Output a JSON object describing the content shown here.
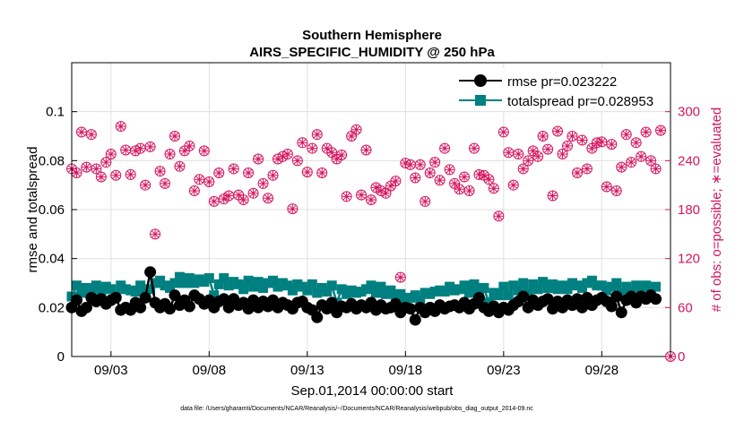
{
  "chart_data": {
    "type": "line",
    "title": "Southern Hemisphere",
    "subtitle": "AIRS_SPECIFIC_HUMIDITY @ 250 hPa",
    "xlabel": "Sep.01,2014 00:00:00 start",
    "ylabel": "rmse and totalspread",
    "ylabel_right": "# of obs: o=possible; ∗=evaluated",
    "footnote": "data file: /Users/gharamti/Documents/NCAR/Reanalysis/~/Documents/NCAR/Reanalysis/webpub/obs_diag_output_2014-09.nc",
    "xlim": [
      1,
      31.5
    ],
    "ylim": [
      0,
      0.12
    ],
    "ylim_right": [
      0,
      360
    ],
    "x_ticks": [
      3,
      8,
      13,
      18,
      23,
      28
    ],
    "x_tick_labels": [
      "09/03",
      "09/08",
      "09/13",
      "09/18",
      "09/23",
      "09/28"
    ],
    "y_ticks": [
      0,
      0.02,
      0.04,
      0.06,
      0.08,
      0.1
    ],
    "y_tick_labels": [
      "0",
      "0.02",
      "0.04",
      "0.06",
      "0.08",
      "0.1"
    ],
    "y_ticks_right": [
      0,
      60,
      120,
      180,
      240,
      300
    ],
    "y_tick_labels_right": [
      "0",
      "60",
      "120",
      "180",
      "240",
      "300"
    ],
    "grid": true,
    "legend_position": "top-right",
    "legend": [
      "rmse pr=0.023222",
      "totalspread pr=0.028953"
    ],
    "colors": {
      "rmse": "#000000",
      "totalspread": "#008080",
      "obs": "#d6155f",
      "grid": "#e0e0e0"
    },
    "series": [
      {
        "name": "rmse pr=0.023222",
        "x": [
          1.0,
          1.25,
          1.5,
          1.75,
          2.0,
          2.25,
          2.5,
          2.75,
          3.0,
          3.25,
          3.5,
          3.75,
          4.0,
          4.25,
          4.5,
          4.75,
          5.0,
          5.25,
          5.5,
          5.75,
          6.0,
          6.25,
          6.5,
          6.75,
          7.0,
          7.25,
          7.5,
          7.75,
          8.0,
          8.25,
          8.5,
          8.75,
          9.0,
          9.25,
          9.5,
          9.75,
          10.0,
          10.25,
          10.5,
          10.75,
          11.0,
          11.25,
          11.5,
          11.75,
          12.0,
          12.25,
          12.5,
          12.75,
          13.0,
          13.25,
          13.5,
          13.75,
          14.0,
          14.25,
          14.5,
          14.75,
          15.0,
          15.25,
          15.5,
          15.75,
          16.0,
          16.25,
          16.5,
          16.75,
          17.0,
          17.25,
          17.5,
          17.75,
          18.0,
          18.25,
          18.5,
          18.75,
          19.0,
          19.25,
          19.5,
          19.75,
          20.0,
          20.25,
          20.5,
          20.75,
          21.0,
          21.25,
          21.5,
          21.75,
          22.0,
          22.25,
          22.5,
          22.75,
          23.0,
          23.25,
          23.5,
          23.75,
          24.0,
          24.25,
          24.5,
          24.75,
          25.0,
          25.25,
          25.5,
          25.75,
          26.0,
          26.25,
          26.5,
          26.75,
          27.0,
          27.25,
          27.5,
          27.75,
          28.0,
          28.25,
          28.5,
          28.75,
          29.0,
          29.25,
          29.5,
          29.75,
          30.0,
          30.25,
          30.5,
          30.75
        ],
        "values": [
          0.02,
          0.023,
          0.0185,
          0.02,
          0.024,
          0.0225,
          0.0235,
          0.0215,
          0.023,
          0.024,
          0.019,
          0.02,
          0.019,
          0.022,
          0.02,
          0.024,
          0.0345,
          0.022,
          0.02,
          0.0215,
          0.0195,
          0.025,
          0.021,
          0.023,
          0.0205,
          0.025,
          0.0235,
          0.0215,
          0.023,
          0.02,
          0.0225,
          0.0235,
          0.02,
          0.0235,
          0.021,
          0.022,
          0.0195,
          0.023,
          0.02,
          0.0225,
          0.0205,
          0.023,
          0.02,
          0.022,
          0.021,
          0.0195,
          0.022,
          0.0225,
          0.02,
          0.019,
          0.016,
          0.021,
          0.0195,
          0.022,
          0.018,
          0.0205,
          0.02,
          0.0215,
          0.0195,
          0.021,
          0.02,
          0.022,
          0.019,
          0.021,
          0.0195,
          0.02,
          0.0215,
          0.018,
          0.02,
          0.0195,
          0.015,
          0.02,
          0.018,
          0.02,
          0.0185,
          0.021,
          0.0195,
          0.0205,
          0.021,
          0.02,
          0.022,
          0.0195,
          0.0215,
          0.024,
          0.02,
          0.0185,
          0.0205,
          0.018,
          0.02,
          0.019,
          0.021,
          0.0225,
          0.0245,
          0.02,
          0.023,
          0.021,
          0.0225,
          0.0235,
          0.0195,
          0.0225,
          0.02,
          0.023,
          0.021,
          0.0235,
          0.02,
          0.024,
          0.021,
          0.023,
          0.024,
          0.0225,
          0.0205,
          0.0245,
          0.018,
          0.023,
          0.0245,
          0.022,
          0.0245,
          0.0235,
          0.025,
          0.0235
        ]
      },
      {
        "name": "totalspread pr=0.028953",
        "x": [
          1.0,
          1.25,
          1.5,
          1.75,
          2.0,
          2.25,
          2.5,
          2.75,
          3.0,
          3.25,
          3.5,
          3.75,
          4.0,
          4.25,
          4.5,
          4.75,
          5.0,
          5.25,
          5.5,
          5.75,
          6.0,
          6.25,
          6.5,
          6.75,
          7.0,
          7.25,
          7.5,
          7.75,
          8.0,
          8.25,
          8.5,
          8.75,
          9.0,
          9.25,
          9.5,
          9.75,
          10.0,
          10.25,
          10.5,
          10.75,
          11.0,
          11.25,
          11.5,
          11.75,
          12.0,
          12.25,
          12.5,
          12.75,
          13.0,
          13.25,
          13.5,
          13.75,
          14.0,
          14.25,
          14.5,
          14.75,
          15.0,
          15.25,
          15.5,
          15.75,
          16.0,
          16.25,
          16.5,
          16.75,
          17.0,
          17.25,
          17.5,
          17.75,
          18.0,
          18.25,
          18.5,
          18.75,
          19.0,
          19.25,
          19.5,
          19.75,
          20.0,
          20.25,
          20.5,
          20.75,
          21.0,
          21.25,
          21.5,
          21.75,
          22.0,
          22.25,
          22.5,
          22.75,
          23.0,
          23.25,
          23.5,
          23.75,
          24.0,
          24.25,
          24.5,
          24.75,
          25.0,
          25.25,
          25.5,
          25.75,
          26.0,
          26.25,
          26.5,
          26.75,
          27.0,
          27.25,
          27.5,
          27.75,
          28.0,
          28.25,
          28.5,
          28.75,
          29.0,
          29.25,
          29.5,
          29.75,
          30.0,
          30.25,
          30.5,
          30.75
        ],
        "values": [
          0.0245,
          0.029,
          0.026,
          0.028,
          0.027,
          0.029,
          0.0265,
          0.0285,
          0.0275,
          0.025,
          0.029,
          0.0275,
          0.027,
          0.0265,
          0.029,
          0.0255,
          0.0275,
          0.03,
          0.031,
          0.029,
          0.028,
          0.03,
          0.0325,
          0.03,
          0.032,
          0.03,
          0.0315,
          0.0305,
          0.032,
          0.025,
          0.0295,
          0.032,
          0.029,
          0.0305,
          0.0295,
          0.0275,
          0.031,
          0.0285,
          0.0305,
          0.028,
          0.03,
          0.031,
          0.0285,
          0.03,
          0.029,
          0.027,
          0.0295,
          0.0285,
          0.027,
          0.0295,
          0.026,
          0.028,
          0.0265,
          0.029,
          0.022,
          0.0275,
          0.0255,
          0.027,
          0.026,
          0.0265,
          0.0275,
          0.029,
          0.026,
          0.0285,
          0.0255,
          0.027,
          0.025,
          0.0255,
          0.0235,
          0.024,
          0.025,
          0.023,
          0.026,
          0.0255,
          0.0265,
          0.027,
          0.0265,
          0.0285,
          0.027,
          0.0275,
          0.029,
          0.026,
          0.0295,
          0.0275,
          0.028,
          0.022,
          0.026,
          0.025,
          0.0285,
          0.025,
          0.029,
          0.027,
          0.03,
          0.026,
          0.0295,
          0.0275,
          0.0305,
          0.028,
          0.0295,
          0.0275,
          0.029,
          0.0275,
          0.03,
          0.029,
          0.028,
          0.03,
          0.031,
          0.029,
          0.029,
          0.027,
          0.0285,
          0.03,
          0.026,
          0.0285,
          0.0265,
          0.029,
          0.028,
          0.029,
          0.0275,
          0.0285
        ]
      }
    ],
    "obs_series": {
      "x": [
        1.0,
        1.25,
        1.5,
        1.75,
        2.0,
        2.25,
        2.5,
        2.75,
        3.0,
        3.25,
        3.5,
        3.75,
        4.0,
        4.25,
        4.5,
        4.75,
        5.0,
        5.25,
        5.5,
        5.75,
        6.0,
        6.25,
        6.5,
        6.75,
        7.0,
        7.25,
        7.5,
        7.75,
        8.0,
        8.25,
        8.5,
        8.75,
        9.0,
        9.25,
        9.5,
        9.75,
        10.0,
        10.25,
        10.5,
        10.75,
        11.0,
        11.25,
        11.5,
        11.75,
        12.0,
        12.25,
        12.5,
        12.75,
        13.0,
        13.25,
        13.5,
        13.75,
        14.0,
        14.25,
        14.5,
        14.75,
        15.0,
        15.25,
        15.5,
        15.75,
        16.0,
        16.25,
        16.5,
        16.75,
        17.0,
        17.25,
        17.5,
        17.75,
        18.0,
        18.25,
        18.5,
        18.75,
        19.0,
        19.25,
        19.5,
        19.75,
        20.0,
        20.25,
        20.5,
        20.75,
        21.0,
        21.25,
        21.5,
        21.75,
        22.0,
        22.25,
        22.5,
        22.75,
        23.0,
        23.25,
        23.5,
        23.75,
        24.0,
        24.25,
        24.5,
        24.75,
        25.0,
        25.25,
        25.5,
        25.75,
        26.0,
        26.25,
        26.5,
        26.75,
        27.0,
        27.25,
        27.5,
        27.75,
        28.0,
        28.25,
        28.5,
        28.75,
        29.0,
        29.25,
        29.5,
        29.75,
        30.0,
        30.25,
        30.5,
        30.75,
        31.0,
        31.5
      ],
      "values": [
        230,
        225,
        275,
        232,
        272,
        230,
        220,
        238,
        248,
        222,
        282,
        253,
        223,
        252,
        255,
        210,
        257,
        150,
        227,
        212,
        248,
        270,
        233,
        252,
        258,
        203,
        217,
        252,
        214,
        190,
        225,
        193,
        197,
        230,
        198,
        192,
        225,
        200,
        242,
        212,
        194,
        222,
        242,
        245,
        248,
        181,
        240,
        262,
        226,
        255,
        272,
        225,
        255,
        250,
        242,
        247,
        196,
        270,
        278,
        198,
        253,
        192,
        207,
        203,
        200,
        209,
        215,
        97,
        237,
        235,
        219,
        235,
        190,
        225,
        238,
        216,
        255,
        229,
        212,
        205,
        220,
        203,
        255,
        223,
        222,
        217,
        206,
        172,
        275,
        250,
        210,
        248,
        230,
        240,
        252,
        245,
        270,
        254,
        197,
        276,
        248,
        258,
        270,
        225,
        265,
        230,
        255,
        262,
        263,
        208,
        260,
        203,
        232,
        272,
        238,
        262,
        245,
        275,
        240,
        230,
        277,
        0
      ]
    }
  }
}
